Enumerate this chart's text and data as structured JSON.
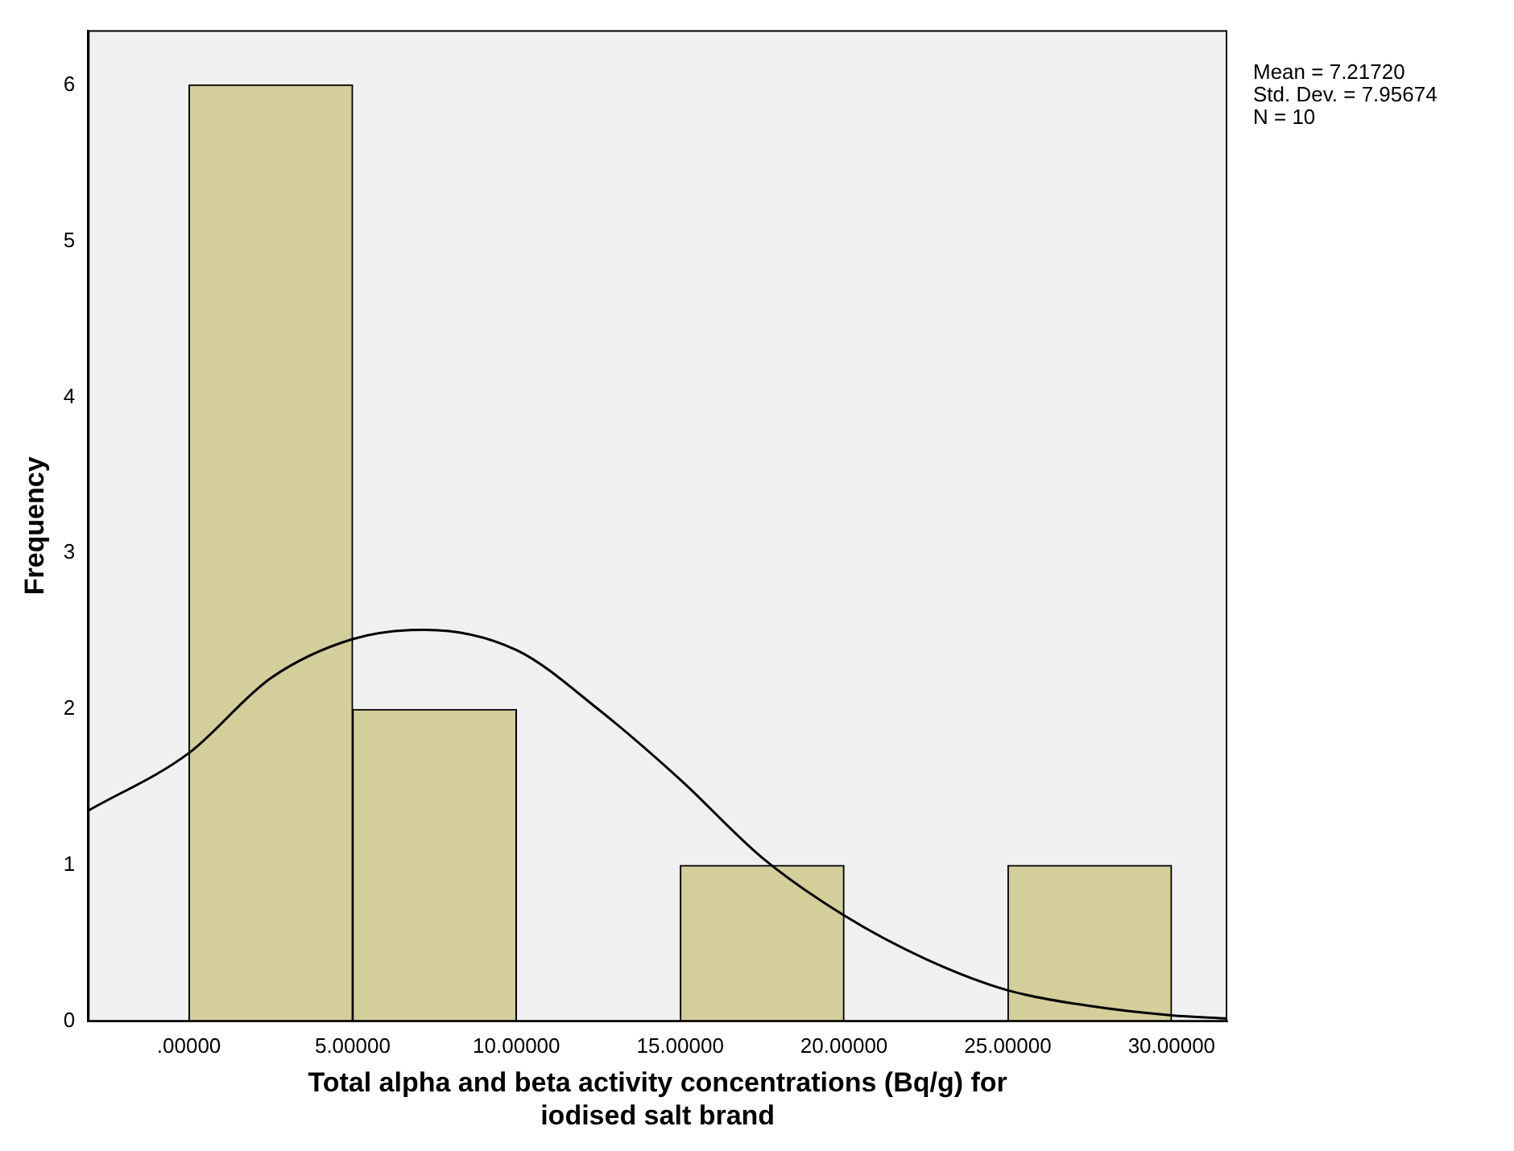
{
  "chart_data": {
    "type": "histogram",
    "xlabel": "Total alpha and beta activity concentrations (Bq/g) for iodised salt brand",
    "ylabel": "Frequency",
    "xlim": [
      -3.08,
      31.7
    ],
    "xticks": [
      {
        "value": 0,
        "label": ".00000"
      },
      {
        "value": 5,
        "label": "5.00000"
      },
      {
        "value": 10,
        "label": "10.00000"
      },
      {
        "value": 15,
        "label": "15.00000"
      },
      {
        "value": 20,
        "label": "20.00000"
      },
      {
        "value": 25,
        "label": "25.00000"
      },
      {
        "value": 30,
        "label": "30.00000"
      }
    ],
    "ylim": [
      0,
      6.35
    ],
    "yticks": [
      0,
      1,
      2,
      3,
      4,
      5,
      6
    ],
    "grid": false,
    "legend": false,
    "series": [
      {
        "bins": [
          0,
          5,
          10,
          15,
          20,
          25,
          30
        ],
        "values": [
          6,
          2,
          0,
          1,
          0,
          1
        ],
        "color": "#d3ce9a"
      },
      {
        "type": "line",
        "x": [
          -3.08,
          0,
          2.5,
          5,
          7.2,
          10,
          12.5,
          15,
          17.5,
          20,
          22.5,
          25,
          27.5,
          30,
          31.7
        ],
        "values": [
          1.35,
          1.72,
          2.2,
          2.45,
          2.51,
          2.38,
          2.0,
          1.55,
          1.05,
          0.68,
          0.4,
          0.2,
          0.1,
          0.04,
          0.02
        ],
        "color": "#000000"
      }
    ],
    "annotations": [
      "Mean = 7.21720",
      "Std. Dev. = 7.95674",
      "N = 10"
    ]
  }
}
